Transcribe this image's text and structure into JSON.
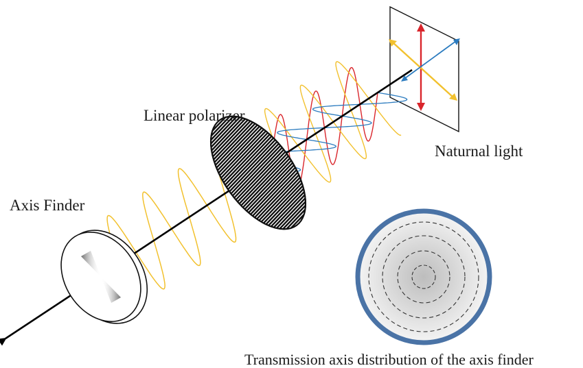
{
  "labels": {
    "linear_polarizer": "Linear polarizer",
    "natural_light": "Naturnal light",
    "axis_finder": "Axis Finder",
    "transmission": "Transmission axis distribution of the axis finder"
  },
  "colors": {
    "beam": "#000000",
    "polarized_wave": "#f2c12e",
    "vertical_wave": "#d9252b",
    "horizontal_wave": "#2b7bbf",
    "finder_ring": "#4a73a6",
    "finder_fill_outer": "#f2f2f2",
    "finder_fill_inner": "#bdbdbd"
  }
}
